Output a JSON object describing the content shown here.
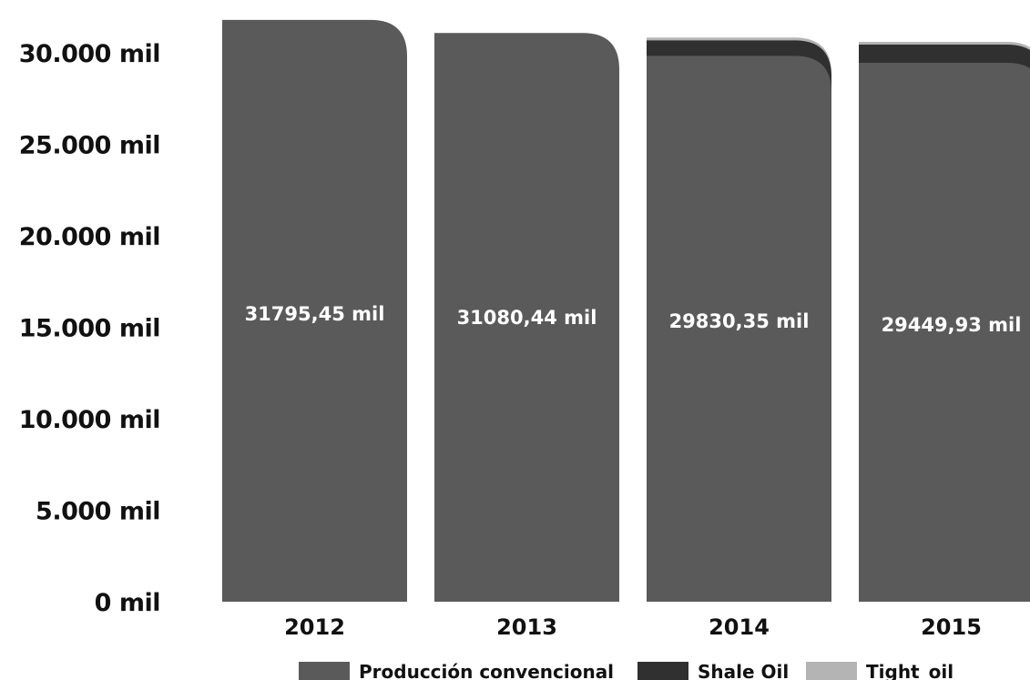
{
  "chart_data": {
    "type": "bar",
    "stacked": true,
    "title": "",
    "xlabel": "",
    "ylabel": "",
    "categories": [
      "2012",
      "2013",
      "2014",
      "2015"
    ],
    "series": [
      {
        "name": "Producción convencional",
        "color": "#5a5a5a",
        "values": [
          31795.45,
          31080.44,
          29830.35,
          29449.93
        ]
      },
      {
        "name": "Shale Oil",
        "color": "#303030",
        "values": [
          0,
          0,
          850,
          1000
        ]
      },
      {
        "name": "Tight_oil",
        "color": "#b4b4b4",
        "values": [
          0,
          0,
          150,
          150
        ]
      }
    ],
    "data_labels": [
      "31795,45 mil",
      "31080,44 mil",
      "29830,35 mil",
      "29449,93 mil"
    ],
    "ylim": [
      0,
      32000
    ],
    "yticks": [
      0,
      5000,
      10000,
      15000,
      20000,
      25000,
      30000
    ],
    "ytick_labels": [
      "0 mil",
      "5.000 mil",
      "10.000 mil",
      "15.000 mil",
      "20.000 mil",
      "25.000 mil",
      "30.000 mil"
    ],
    "grid": false,
    "legend_position": "bottom"
  }
}
